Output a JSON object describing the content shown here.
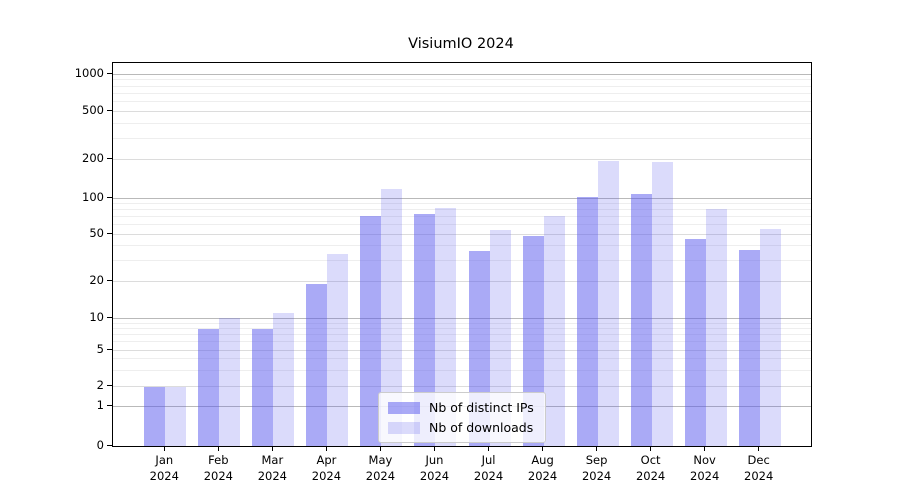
{
  "title": "VisiumIO 2024",
  "colors": {
    "bar_distinct_ips": "rgba(85,85,238,0.5)",
    "bar_downloads": "rgba(85,85,238,0.21)",
    "axis": "#000000"
  },
  "legend": {
    "items": [
      {
        "label": "Nb of distinct IPs",
        "color_key": "bar_distinct_ips"
      },
      {
        "label": "Nb of downloads",
        "color_key": "bar_downloads"
      }
    ]
  },
  "chart_data": {
    "type": "bar",
    "title": "VisiumIO 2024",
    "categories": [
      "Jan 2024",
      "Feb 2024",
      "Mar 2024",
      "Apr 2024",
      "May 2024",
      "Jun 2024",
      "Jul 2024",
      "Aug 2024",
      "Sep 2024",
      "Oct 2024",
      "Nov 2024",
      "Dec 2024"
    ],
    "series": [
      {
        "name": "Nb of distinct IPs",
        "values": [
          2,
          8,
          8,
          19,
          71,
          74,
          36,
          48,
          101,
          108,
          46,
          37
        ]
      },
      {
        "name": "Nb of downloads",
        "values": [
          2,
          10,
          11,
          34,
          118,
          83,
          54,
          71,
          197,
          193,
          81,
          55
        ]
      }
    ],
    "yscale": "symlog",
    "ylim": [
      0,
      1000
    ],
    "yticks": [
      0,
      1,
      2,
      5,
      10,
      20,
      50,
      100,
      200,
      500,
      1000
    ],
    "yticks_minor": [
      3,
      4,
      6,
      7,
      8,
      9,
      30,
      40,
      60,
      70,
      80,
      90,
      300,
      400,
      600,
      700,
      800,
      900
    ],
    "grid": true,
    "legend_position": "lower-center"
  }
}
